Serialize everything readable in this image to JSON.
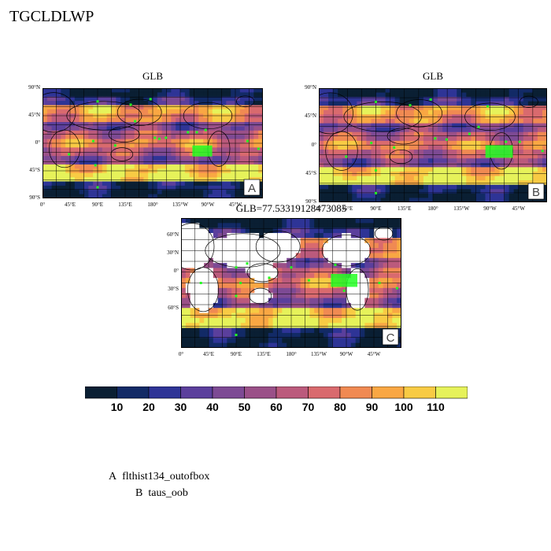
{
  "title": "TGCLDLWP",
  "panels": [
    {
      "id": "A",
      "title": "GLB",
      "letter": "A",
      "lat_ticks": [
        "90°N",
        "45°N",
        "0°",
        "45°S",
        "90°S"
      ],
      "lon_ticks": [
        "0°",
        "45°E",
        "90°E",
        "135°E",
        "180°",
        "135°W",
        "90°W",
        "45°W"
      ]
    },
    {
      "id": "B",
      "title": "GLB",
      "letter": "B",
      "lat_ticks": [
        "90°N",
        "45°N",
        "0°",
        "45°S",
        "90°S"
      ],
      "lon_ticks": [
        "0°",
        "45°E",
        "90°E",
        "135°E",
        "180°",
        "135°W",
        "90°W",
        "45°W"
      ]
    },
    {
      "id": "C",
      "title": "GLB=77.53319128473085",
      "letter": "C",
      "lat_ticks": [
        "60°N",
        "30°N",
        "0°",
        "30°S",
        "60°S"
      ],
      "lon_ticks": [
        "0°",
        "45°E",
        "90°E",
        "135°E",
        "180°",
        "135°W",
        "90°W",
        "45°W"
      ]
    }
  ],
  "colorbar": {
    "colors": [
      "#0a1f33",
      "#122a66",
      "#2e3496",
      "#5b3f9c",
      "#7d4a94",
      "#9a5088",
      "#bb5a7c",
      "#d96a6e",
      "#f08a52",
      "#f9a743",
      "#f8cb44",
      "#e6f25a"
    ],
    "labels": [
      "10",
      "20",
      "30",
      "40",
      "50",
      "60",
      "70",
      "80",
      "90",
      "100",
      "110"
    ]
  },
  "legend": [
    {
      "letter": "A",
      "text": "flthist134_outofbox"
    },
    {
      "letter": "B",
      "text": "taus_oob"
    }
  ]
}
